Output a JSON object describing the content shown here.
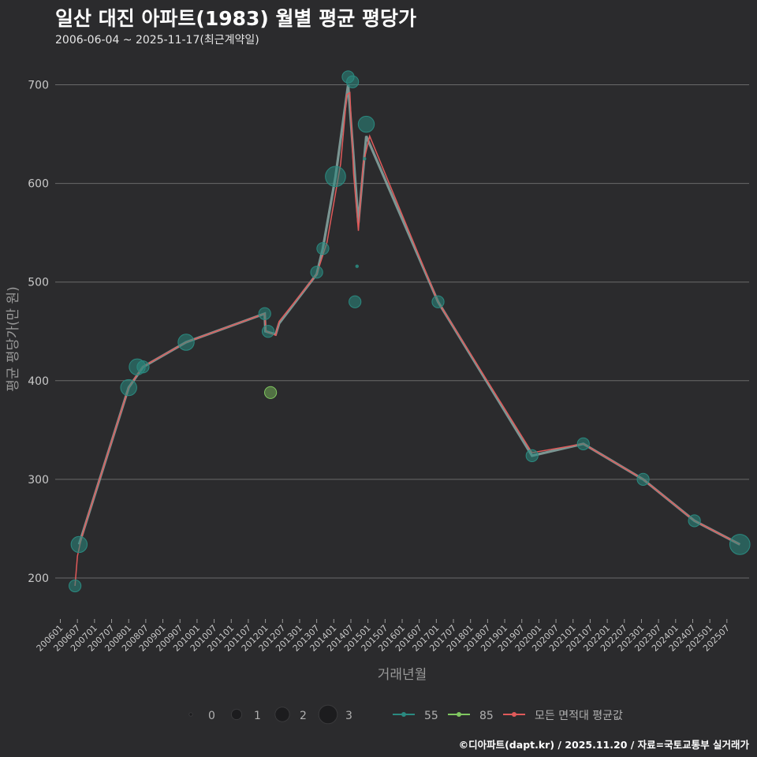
{
  "chart_data": {
    "type": "line",
    "title": "일산 대진 아파트(1983) 월별 평균 평당가",
    "subtitle": "2006-06-04 ~ 2025-11-17(최근계약일)",
    "xlabel": "거래년월",
    "ylabel": "평균 평당가(만 원)",
    "ylim": [
      160,
      730
    ],
    "yticks": [
      200,
      300,
      400,
      500,
      600,
      700
    ],
    "xlim": [
      2005.85,
      2026.15
    ],
    "xtick_labels": [
      "200601",
      "200607",
      "200701",
      "200707",
      "200801",
      "200807",
      "200901",
      "200907",
      "201001",
      "201007",
      "201101",
      "201107",
      "201201",
      "201207",
      "201301",
      "201307",
      "201401",
      "201407",
      "201501",
      "201507",
      "201601",
      "201607",
      "201701",
      "201707",
      "201801",
      "201807",
      "201901",
      "201907",
      "202001",
      "202007",
      "202101",
      "202107",
      "202201",
      "202207",
      "202301",
      "202307",
      "202401",
      "202407",
      "202501",
      "202507"
    ],
    "colors": {
      "s55": "#2a8a80",
      "s85": "#80c860",
      "avg": "#e05a5a",
      "grid": "#6a6a6a",
      "text": "#bbbbbb"
    },
    "series": [
      {
        "name": "55",
        "points": [
          {
            "x": 2006.43,
            "y": 192,
            "count": 1
          },
          {
            "x": 2006.55,
            "y": 234,
            "count": 2
          },
          {
            "x": 2008.0,
            "y": 393,
            "count": 2
          },
          {
            "x": 2008.25,
            "y": 414,
            "count": 2
          },
          {
            "x": 2008.42,
            "y": 414,
            "count": 1
          },
          {
            "x": 2009.68,
            "y": 439,
            "count": 2
          },
          {
            "x": 2011.98,
            "y": 468,
            "count": 1
          },
          {
            "x": 2012.08,
            "y": 450,
            "count": 1
          },
          {
            "x": 2013.5,
            "y": 510,
            "count": 1
          },
          {
            "x": 2013.68,
            "y": 534,
            "count": 1
          },
          {
            "x": 2014.05,
            "y": 607,
            "count": 3
          },
          {
            "x": 2014.42,
            "y": 708,
            "count": 1
          },
          {
            "x": 2014.55,
            "y": 703,
            "count": 1
          },
          {
            "x": 2014.62,
            "y": 480,
            "count": 1
          },
          {
            "x": 2014.95,
            "y": 660,
            "count": 2
          },
          {
            "x": 2017.05,
            "y": 480,
            "count": 1
          },
          {
            "x": 2019.8,
            "y": 324,
            "count": 1
          },
          {
            "x": 2021.3,
            "y": 336,
            "count": 1
          },
          {
            "x": 2023.05,
            "y": 300,
            "count": 1
          },
          {
            "x": 2024.55,
            "y": 258,
            "count": 1
          },
          {
            "x": 2025.88,
            "y": 234,
            "count": 3
          }
        ],
        "line": [
          [
            2006.55,
            234
          ],
          [
            2008.0,
            393
          ],
          [
            2008.42,
            414
          ],
          [
            2009.68,
            439
          ],
          [
            2011.98,
            468
          ],
          [
            2012.0,
            450
          ],
          [
            2012.3,
            447
          ],
          [
            2012.4,
            458
          ],
          [
            2013.5,
            508
          ],
          [
            2013.68,
            534
          ],
          [
            2014.05,
            607
          ],
          [
            2014.42,
            700
          ],
          [
            2014.55,
            640
          ],
          [
            2014.72,
            560
          ],
          [
            2014.95,
            648
          ],
          [
            2017.05,
            480
          ],
          [
            2019.8,
            324
          ],
          [
            2021.3,
            336
          ],
          [
            2023.05,
            300
          ],
          [
            2024.55,
            258
          ],
          [
            2025.88,
            234
          ]
        ]
      },
      {
        "name": "85",
        "points": [
          {
            "x": 2012.15,
            "y": 388,
            "count": 1
          }
        ],
        "line": []
      },
      {
        "name": "모든 면적대 평균값",
        "line": [
          [
            2006.43,
            192
          ],
          [
            2006.5,
            222
          ],
          [
            2006.6,
            238
          ],
          [
            2006.8,
            262
          ],
          [
            2008.0,
            393
          ],
          [
            2008.4,
            414
          ],
          [
            2009.68,
            439
          ],
          [
            2011.98,
            468
          ],
          [
            2012.02,
            450
          ],
          [
            2012.3,
            446
          ],
          [
            2012.4,
            460
          ],
          [
            2013.5,
            508
          ],
          [
            2013.8,
            540
          ],
          [
            2014.2,
            620
          ],
          [
            2014.38,
            690
          ],
          [
            2014.47,
            692
          ],
          [
            2014.58,
            610
          ],
          [
            2014.72,
            552
          ],
          [
            2014.86,
            620
          ],
          [
            2015.05,
            648
          ],
          [
            2017.05,
            480
          ],
          [
            2019.8,
            327
          ],
          [
            2021.3,
            336
          ],
          [
            2023.05,
            300
          ],
          [
            2024.55,
            258
          ],
          [
            2025.88,
            234
          ]
        ]
      }
    ],
    "extra_points": [
      {
        "x": 2014.68,
        "y": 516,
        "count": 0
      },
      {
        "x": 2014.9,
        "y": 625,
        "count": 0
      }
    ],
    "size_legend": [
      "0",
      "1",
      "2",
      "3"
    ],
    "legend": [
      "55",
      "85",
      "모든 면적대 평균값"
    ]
  },
  "caption": "©디아파트(dapt.kr) / 2025.11.20 / 자료=국토교통부 실거래가"
}
